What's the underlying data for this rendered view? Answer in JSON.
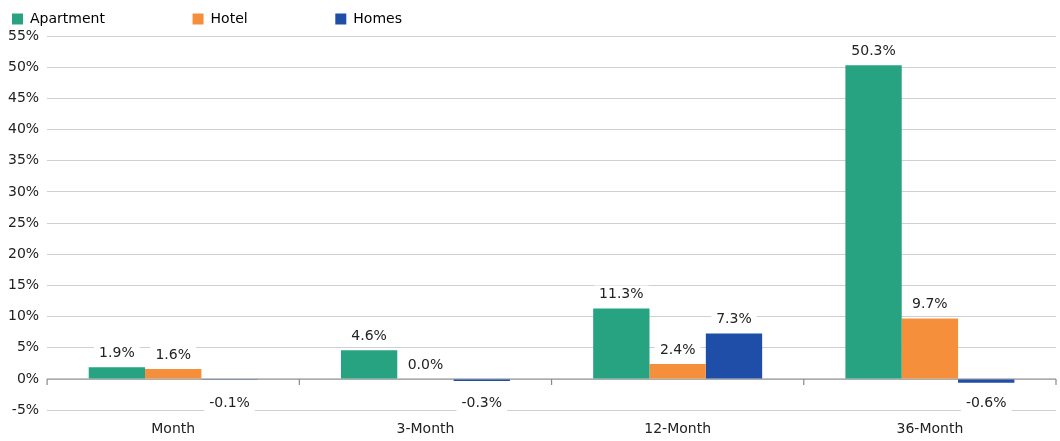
{
  "chart_data": {
    "type": "bar",
    "categories": [
      "Month",
      "3-Month",
      "12-Month",
      "36-Month"
    ],
    "series": [
      {
        "name": "Apartment",
        "color": "#27a382",
        "values": [
          1.9,
          4.6,
          11.3,
          50.3
        ],
        "value_labels": [
          "1.9%",
          "4.6%",
          "11.3%",
          "50.3%"
        ]
      },
      {
        "name": "Hotel",
        "color": "#f58f3b",
        "values": [
          1.6,
          0.0,
          2.4,
          9.7
        ],
        "value_labels": [
          "1.6%",
          "0.0%",
          "2.4%",
          "9.7%"
        ]
      },
      {
        "name": "Homes",
        "color": "#1f4ea8",
        "values": [
          -0.1,
          -0.3,
          7.3,
          -0.6
        ],
        "value_labels": [
          "-0.1%",
          "-0.3%",
          "7.3%",
          "-0.6%"
        ]
      }
    ],
    "ylim": [
      -5,
      55
    ],
    "yticks": [
      {
        "value": -5,
        "label": "-5%"
      },
      {
        "value": 0,
        "label": "0%"
      },
      {
        "value": 5,
        "label": "5%"
      },
      {
        "value": 10,
        "label": "10%"
      },
      {
        "value": 15,
        "label": "15%"
      },
      {
        "value": 20,
        "label": "20%"
      },
      {
        "value": 25,
        "label": "25%"
      },
      {
        "value": 30,
        "label": "30%"
      },
      {
        "value": 35,
        "label": "35%"
      },
      {
        "value": 40,
        "label": "40%"
      },
      {
        "value": 45,
        "label": "45%"
      },
      {
        "value": 50,
        "label": "50%"
      },
      {
        "value": 55,
        "label": "55%"
      }
    ],
    "grid": "y",
    "legend": "top left"
  }
}
